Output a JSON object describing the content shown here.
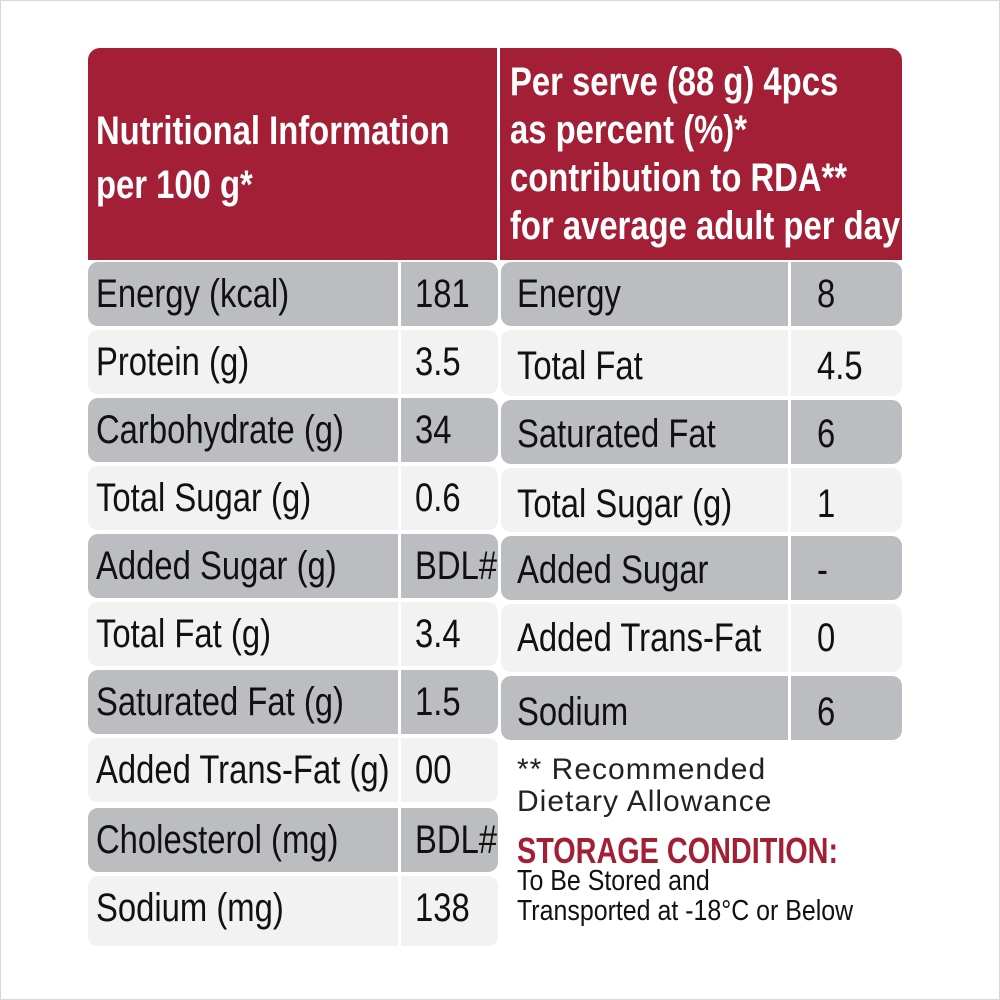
{
  "header": {
    "left_line1": "Nutritional Information",
    "left_line2": "per 100 g*",
    "right_line1": "Per serve (88 g) 4pcs",
    "right_line2": "as percent (%)*",
    "right_line3": "contribution to RDA**",
    "right_line4": "for average adult per day"
  },
  "per100g": [
    {
      "label": "Energy (kcal)",
      "value": "181"
    },
    {
      "label": "Protein (g)",
      "value": "3.5"
    },
    {
      "label": "Carbohydrate (g)",
      "value": "34"
    },
    {
      "label": "Total Sugar (g)",
      "value": "0.6"
    },
    {
      "label": "Added Sugar (g)",
      "value": "BDL#"
    },
    {
      "label": "Total Fat (g)",
      "value": "3.4"
    },
    {
      "label": "Saturated Fat (g)",
      "value": "1.5"
    },
    {
      "label": "Added Trans-Fat (g)",
      "value": "00"
    },
    {
      "label": "Cholesterol (mg)",
      "value": "BDL#"
    },
    {
      "label": "Sodium (mg)",
      "value": "138"
    }
  ],
  "rda": [
    {
      "label": "Energy",
      "value": "8"
    },
    {
      "label": "Total Fat",
      "value": "4.5"
    },
    {
      "label": "Saturated Fat",
      "value": "6"
    },
    {
      "label": "Total Sugar (g)",
      "value": "1"
    },
    {
      "label": "Added Sugar",
      "value": "-"
    },
    {
      "label": "Added Trans-Fat",
      "value": "0"
    },
    {
      "label": "Sodium",
      "value": "6"
    }
  ],
  "footnote": {
    "line1": "** Recommended",
    "line2": "Dietary Allowance"
  },
  "storage": {
    "title": "STORAGE CONDITION:",
    "line1": "To Be Stored and",
    "line2": "Transported at -18°C or Below"
  },
  "colors": {
    "brand_red": "#a31f36",
    "row_dark": "#bcbdc0",
    "row_light": "#f2f2f2"
  }
}
